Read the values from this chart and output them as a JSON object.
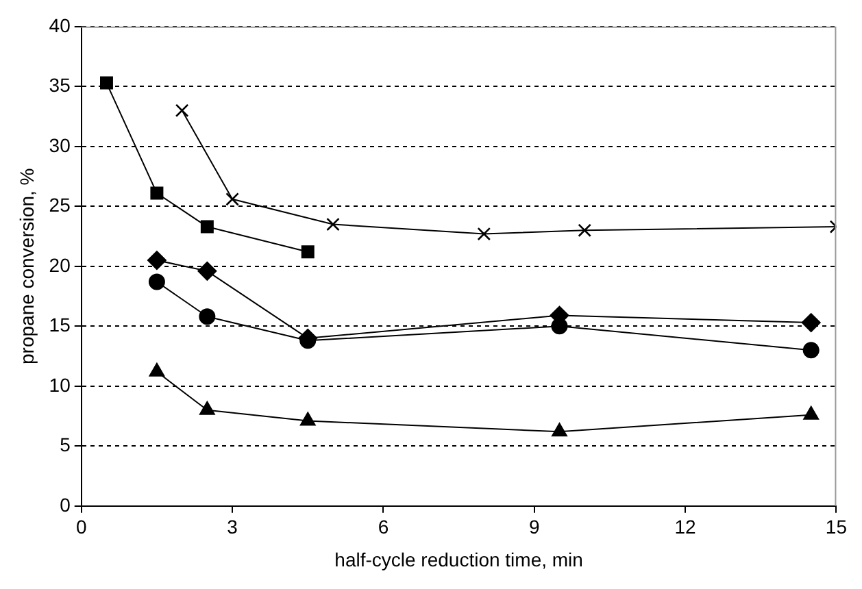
{
  "chart_data": {
    "type": "line",
    "xlabel": "half-cycle reduction time, min",
    "ylabel": "propane conversion, %",
    "xlim": [
      0,
      15
    ],
    "xticks": [
      0,
      3,
      6,
      9,
      12,
      15
    ],
    "ylim": [
      0,
      40
    ],
    "yticks": [
      0,
      5,
      10,
      15,
      20,
      25,
      30,
      35,
      40
    ],
    "grid": "y",
    "legend": false,
    "line_style": "solid",
    "series": [
      {
        "color": "#000000",
        "marker": "square",
        "x": [
          0.5,
          1.5,
          2.5,
          4.5
        ],
        "values": [
          35.3,
          26.1,
          23.3,
          21.2
        ]
      },
      {
        "color": "#000000",
        "marker": "cross",
        "x": [
          2,
          3,
          5,
          8,
          10,
          15
        ],
        "values": [
          33,
          25.6,
          23.5,
          22.7,
          23.0,
          23.3
        ]
      },
      {
        "color": "#000000",
        "marker": "diamond",
        "x": [
          1.5,
          2.5,
          4.5,
          9.5,
          14.5
        ],
        "values": [
          20.5,
          19.6,
          14.0,
          15.9,
          15.3
        ]
      },
      {
        "color": "#000000",
        "marker": "circle",
        "x": [
          1.5,
          2.5,
          4.5,
          9.5,
          14.5
        ],
        "values": [
          18.7,
          15.8,
          13.8,
          15.0,
          13.0
        ]
      },
      {
        "color": "#000000",
        "marker": "triangle",
        "x": [
          1.5,
          2.5,
          4.5,
          9.5,
          14.5
        ],
        "values": [
          11.2,
          8.0,
          7.1,
          6.2,
          7.6
        ]
      }
    ]
  }
}
